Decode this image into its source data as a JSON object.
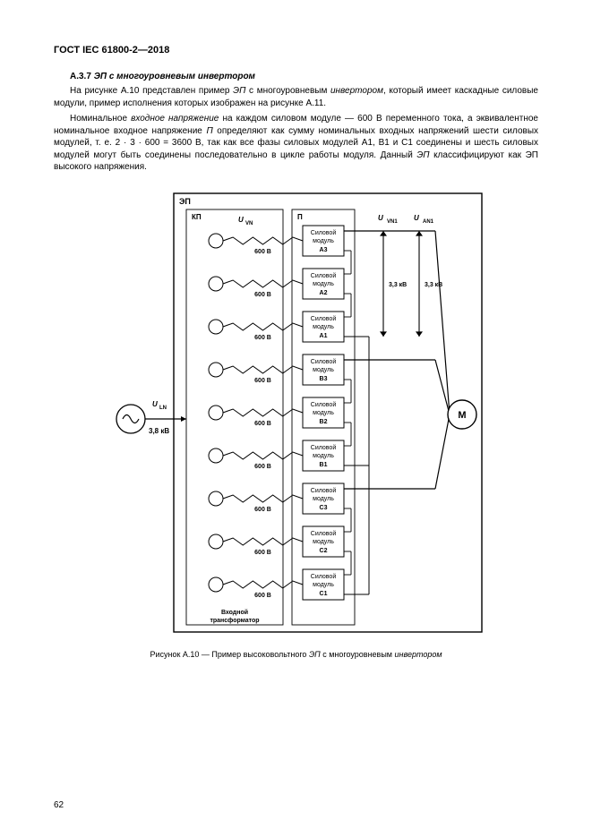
{
  "doc": {
    "standard_header": "ГОСТ IEC 61800-2—2018",
    "section_number": "А.3.7",
    "section_title": "ЭП с многоуровневым инвертором",
    "para1_a": "На рисунке А.10 представлен пример ",
    "para1_em1": "ЭП",
    "para1_b": " с многоуровневым ",
    "para1_em2": "инвертором",
    "para1_c": ", который имеет каскадные силовые модули, пример исполнения которых изображен на рисунке А.11.",
    "para2_a": "Номинальное ",
    "para2_em1": "входное напряжение",
    "para2_b": " на каждом силовом модуле — 600 В переменного тока, а эквивалентное номинальное входное напряжение ",
    "para2_em2": "П",
    "para2_c": " определяют как сумму номинальных входных напряжений шести силовых модулей, т. е. 2 · 3 · 600 = 3600 В, так как все фазы силовых модулей А1, В1 и С1 соединены и шесть силовых модулей могут быть соединены последовательно в цикле работы модуля. Данный ",
    "para2_em3": "ЭП",
    "para2_d": " классифицируют как ЭП высокого напряжения.",
    "caption_a": "Рисунок А.10 — Пример высоковольтного ",
    "caption_em1": "ЭП",
    "caption_b": " с многоуровневым ",
    "caption_em2": "инвертором",
    "page_number": "62"
  },
  "diagram": {
    "label_ep": "ЭП",
    "label_kp": "КП",
    "label_p": "П",
    "voltage_label": "600 В",
    "source_voltage": "3,8 кВ",
    "phase_voltage": "3,3 кВ",
    "u_ln": "U",
    "u_ln_sub": "LN",
    "u_vn": "U",
    "u_vn_sub": "VN",
    "u_vn1": "U",
    "u_vn1_sub": "VN1",
    "u_an1": "U",
    "u_an1_sub": "AN1",
    "motor_label": "М",
    "transformer_label_1": "Входной",
    "transformer_label_2": "трансформатор",
    "modules": [
      {
        "l1": "Силовой",
        "l2": "модуль",
        "l3": "А3"
      },
      {
        "l1": "Силовой",
        "l2": "модуль",
        "l3": "А2"
      },
      {
        "l1": "Силовой",
        "l2": "модуль",
        "l3": "А1"
      },
      {
        "l1": "Силовой",
        "l2": "модуль",
        "l3": "В3"
      },
      {
        "l1": "Силовой",
        "l2": "модуль",
        "l3": "В2"
      },
      {
        "l1": "Силовой",
        "l2": "модуль",
        "l3": "В1"
      },
      {
        "l1": "Силовой",
        "l2": "модуль",
        "l3": "С3"
      },
      {
        "l1": "Силовой",
        "l2": "модуль",
        "l3": "С2"
      },
      {
        "l1": "Силовой",
        "l2": "модуль",
        "l3": "С1"
      }
    ],
    "colors": {
      "stroke": "#000000",
      "bg": "#ffffff",
      "text": "#000000"
    },
    "style": {
      "outer_stroke_width": 1.4,
      "thin_stroke_width": 0.9,
      "font_small": 7,
      "font_med": 8,
      "font_label": 9
    }
  }
}
